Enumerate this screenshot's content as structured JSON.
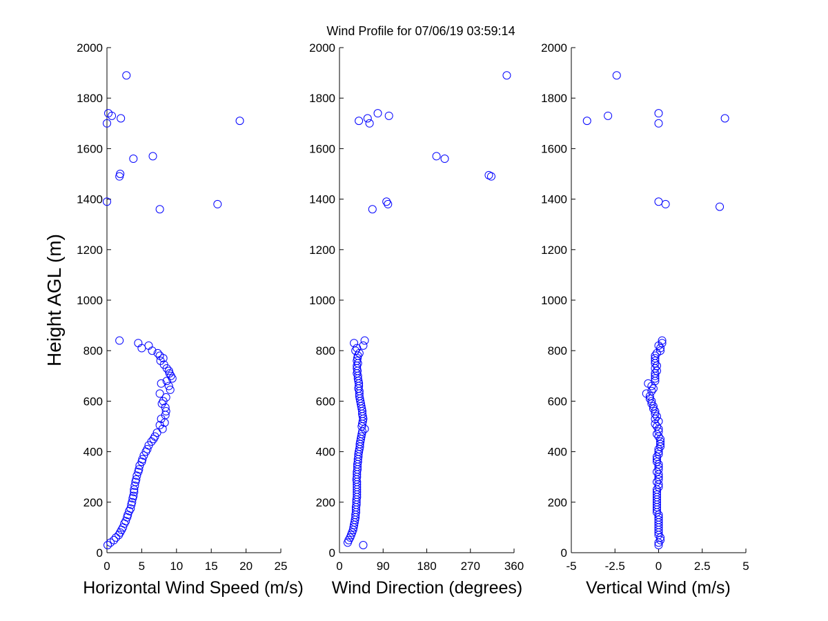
{
  "title": "Wind Profile for  07/06/19 03:59:14",
  "colors": {
    "marker": "#0000ff",
    "axis": "#000000"
  },
  "chart_data": [
    {
      "type": "scatter",
      "id": "speed",
      "xlabel": "Horizontal Wind Speed (m/s)",
      "ylabel": "Height AGL (m)",
      "xlim": [
        0,
        25
      ],
      "ylim": [
        0,
        2000
      ],
      "xticks": [
        0,
        5,
        10,
        15,
        20,
        25
      ],
      "xtick_labels": [
        "0",
        "5",
        "10",
        "15",
        "20",
        "25"
      ],
      "yticks": [
        0,
        200,
        400,
        600,
        800,
        1000,
        1200,
        1400,
        1600,
        1800,
        2000
      ],
      "points": [
        [
          2.8,
          1890
        ],
        [
          0.2,
          1740
        ],
        [
          0.7,
          1730
        ],
        [
          2.0,
          1720
        ],
        [
          19.1,
          1710
        ],
        [
          0.0,
          1700
        ],
        [
          6.6,
          1570
        ],
        [
          3.8,
          1560
        ],
        [
          1.9,
          1500
        ],
        [
          1.8,
          1490
        ],
        [
          0.0,
          1390
        ],
        [
          15.9,
          1380
        ],
        [
          7.6,
          1360
        ],
        [
          1.8,
          840
        ],
        [
          4.5,
          830
        ],
        [
          6.0,
          820
        ],
        [
          5.0,
          810
        ],
        [
          6.5,
          800
        ],
        [
          7.3,
          790
        ],
        [
          7.6,
          780
        ],
        [
          8.1,
          770
        ],
        [
          7.7,
          760
        ],
        [
          8.2,
          745
        ],
        [
          8.6,
          730
        ],
        [
          8.9,
          720
        ],
        [
          9.0,
          710
        ],
        [
          9.2,
          700
        ],
        [
          9.4,
          690
        ],
        [
          8.6,
          680
        ],
        [
          7.8,
          670
        ],
        [
          8.9,
          660
        ],
        [
          9.1,
          645
        ],
        [
          7.6,
          630
        ],
        [
          8.5,
          615
        ],
        [
          8.1,
          600
        ],
        [
          7.9,
          590
        ],
        [
          8.4,
          575
        ],
        [
          8.5,
          560
        ],
        [
          8.4,
          545
        ],
        [
          7.8,
          530
        ],
        [
          8.3,
          515
        ],
        [
          7.6,
          505
        ],
        [
          8.0,
          490
        ],
        [
          7.2,
          475
        ],
        [
          6.9,
          460
        ],
        [
          6.7,
          450
        ],
        [
          6.4,
          440
        ],
        [
          6.0,
          425
        ],
        [
          5.8,
          410
        ],
        [
          5.6,
          400
        ],
        [
          5.3,
          385
        ],
        [
          5.1,
          370
        ],
        [
          5.0,
          360
        ],
        [
          4.7,
          345
        ],
        [
          4.6,
          330
        ],
        [
          4.5,
          320
        ],
        [
          4.3,
          305
        ],
        [
          4.2,
          290
        ],
        [
          4.1,
          280
        ],
        [
          4.0,
          265
        ],
        [
          3.9,
          250
        ],
        [
          3.9,
          240
        ],
        [
          3.8,
          225
        ],
        [
          3.7,
          215
        ],
        [
          3.6,
          200
        ],
        [
          3.5,
          190
        ],
        [
          3.4,
          175
        ],
        [
          3.2,
          165
        ],
        [
          3.0,
          150
        ],
        [
          2.9,
          140
        ],
        [
          2.7,
          125
        ],
        [
          2.5,
          115
        ],
        [
          2.3,
          100
        ],
        [
          2.1,
          90
        ],
        [
          1.9,
          80
        ],
        [
          1.7,
          70
        ],
        [
          1.3,
          60
        ],
        [
          1.0,
          50
        ],
        [
          0.5,
          40
        ],
        [
          0.1,
          30
        ]
      ]
    },
    {
      "type": "scatter",
      "id": "direction",
      "xlabel": "Wind Direction (degrees)",
      "ylabel": "",
      "xlim": [
        0,
        360
      ],
      "ylim": [
        0,
        2000
      ],
      "xticks": [
        0,
        90,
        180,
        270,
        360
      ],
      "xtick_labels": [
        "0",
        "90",
        "180",
        "270",
        "360"
      ],
      "yticks": [
        0,
        200,
        400,
        600,
        800,
        1000,
        1200,
        1400,
        1600,
        1800,
        2000
      ],
      "points": [
        [
          345,
          1890
        ],
        [
          79,
          1740
        ],
        [
          102,
          1730
        ],
        [
          58,
          1720
        ],
        [
          40,
          1710
        ],
        [
          62,
          1700
        ],
        [
          200,
          1570
        ],
        [
          217,
          1560
        ],
        [
          308,
          1495
        ],
        [
          313,
          1490
        ],
        [
          97,
          1390
        ],
        [
          100,
          1380
        ],
        [
          68,
          1360
        ],
        [
          52,
          840
        ],
        [
          30,
          830
        ],
        [
          49,
          820
        ],
        [
          36,
          810
        ],
        [
          33,
          800
        ],
        [
          41,
          790
        ],
        [
          38,
          780
        ],
        [
          37,
          770
        ],
        [
          36,
          760
        ],
        [
          38,
          750
        ],
        [
          36,
          740
        ],
        [
          36,
          730
        ],
        [
          37,
          720
        ],
        [
          36,
          710
        ],
        [
          38,
          700
        ],
        [
          38,
          690
        ],
        [
          39,
          680
        ],
        [
          40,
          670
        ],
        [
          40,
          660
        ],
        [
          39,
          650
        ],
        [
          41,
          640
        ],
        [
          41,
          630
        ],
        [
          41,
          620
        ],
        [
          42,
          610
        ],
        [
          43,
          600
        ],
        [
          44,
          590
        ],
        [
          45,
          580
        ],
        [
          46,
          570
        ],
        [
          47,
          560
        ],
        [
          47,
          550
        ],
        [
          48,
          540
        ],
        [
          49,
          530
        ],
        [
          48,
          520
        ],
        [
          47,
          510
        ],
        [
          46,
          500
        ],
        [
          52,
          490
        ],
        [
          47,
          480
        ],
        [
          46,
          470
        ],
        [
          45,
          460
        ],
        [
          44,
          450
        ],
        [
          43,
          440
        ],
        [
          42,
          430
        ],
        [
          42,
          420
        ],
        [
          41,
          410
        ],
        [
          40,
          400
        ],
        [
          39,
          390
        ],
        [
          39,
          380
        ],
        [
          38,
          370
        ],
        [
          38,
          360
        ],
        [
          37,
          350
        ],
        [
          37,
          340
        ],
        [
          37,
          330
        ],
        [
          36,
          320
        ],
        [
          36,
          310
        ],
        [
          36,
          300
        ],
        [
          35,
          290
        ],
        [
          36,
          280
        ],
        [
          36,
          270
        ],
        [
          36,
          260
        ],
        [
          36,
          250
        ],
        [
          36,
          240
        ],
        [
          36,
          230
        ],
        [
          36,
          220
        ],
        [
          35,
          210
        ],
        [
          35,
          200
        ],
        [
          35,
          190
        ],
        [
          34,
          180
        ],
        [
          34,
          170
        ],
        [
          34,
          160
        ],
        [
          33,
          150
        ],
        [
          33,
          140
        ],
        [
          32,
          130
        ],
        [
          31,
          120
        ],
        [
          30,
          110
        ],
        [
          29,
          100
        ],
        [
          28,
          90
        ],
        [
          26,
          80
        ],
        [
          24,
          70
        ],
        [
          22,
          60
        ],
        [
          19,
          50
        ],
        [
          17,
          40
        ],
        [
          49,
          30
        ]
      ]
    },
    {
      "type": "scatter",
      "id": "vertical",
      "xlabel": "Vertical Wind (m/s)",
      "ylabel": "",
      "xlim": [
        -5,
        5
      ],
      "ylim": [
        0,
        2000
      ],
      "xticks": [
        -5,
        -2.5,
        0,
        2.5,
        5
      ],
      "xtick_labels": [
        "-5",
        "-2.5",
        "0",
        "2.5",
        "5"
      ],
      "yticks": [
        0,
        200,
        400,
        600,
        800,
        1000,
        1200,
        1400,
        1600,
        1800,
        2000
      ],
      "points": [
        [
          -2.4,
          1890
        ],
        [
          0.0,
          1740
        ],
        [
          -2.9,
          1730
        ],
        [
          3.8,
          1720
        ],
        [
          -4.1,
          1710
        ],
        [
          0.0,
          1700
        ],
        [
          0.0,
          1390
        ],
        [
          0.4,
          1380
        ],
        [
          3.5,
          1370
        ],
        [
          0.2,
          840
        ],
        [
          0.2,
          830
        ],
        [
          0.0,
          820
        ],
        [
          0.1,
          810
        ],
        [
          0.1,
          800
        ],
        [
          -0.1,
          790
        ],
        [
          -0.2,
          780
        ],
        [
          -0.2,
          770
        ],
        [
          -0.2,
          760
        ],
        [
          -0.2,
          750
        ],
        [
          -0.1,
          740
        ],
        [
          -0.2,
          730
        ],
        [
          -0.1,
          720
        ],
        [
          -0.2,
          710
        ],
        [
          -0.2,
          700
        ],
        [
          -0.2,
          690
        ],
        [
          -0.2,
          680
        ],
        [
          -0.6,
          670
        ],
        [
          -0.4,
          660
        ],
        [
          -0.3,
          650
        ],
        [
          -0.4,
          640
        ],
        [
          -0.7,
          630
        ],
        [
          -0.5,
          620
        ],
        [
          -0.5,
          610
        ],
        [
          -0.4,
          600
        ],
        [
          -0.4,
          590
        ],
        [
          -0.3,
          580
        ],
        [
          -0.3,
          570
        ],
        [
          -0.2,
          560
        ],
        [
          -0.2,
          550
        ],
        [
          -0.1,
          540
        ],
        [
          -0.2,
          530
        ],
        [
          0.0,
          520
        ],
        [
          -0.2,
          510
        ],
        [
          -0.1,
          500
        ],
        [
          0.0,
          490
        ],
        [
          0.0,
          480
        ],
        [
          -0.1,
          470
        ],
        [
          0.0,
          460
        ],
        [
          0.1,
          450
        ],
        [
          0.1,
          440
        ],
        [
          0.1,
          430
        ],
        [
          0.1,
          420
        ],
        [
          0.0,
          410
        ],
        [
          0.0,
          400
        ],
        [
          0.0,
          390
        ],
        [
          -0.1,
          380
        ],
        [
          -0.1,
          370
        ],
        [
          -0.1,
          360
        ],
        [
          0.0,
          350
        ],
        [
          0.0,
          340
        ],
        [
          0.0,
          330
        ],
        [
          -0.1,
          320
        ],
        [
          0.0,
          310
        ],
        [
          0.0,
          300
        ],
        [
          0.0,
          290
        ],
        [
          -0.1,
          280
        ],
        [
          0.0,
          270
        ],
        [
          0.0,
          260
        ],
        [
          -0.1,
          250
        ],
        [
          -0.1,
          240
        ],
        [
          -0.1,
          230
        ],
        [
          -0.1,
          220
        ],
        [
          -0.1,
          210
        ],
        [
          -0.1,
          200
        ],
        [
          -0.1,
          190
        ],
        [
          -0.1,
          180
        ],
        [
          -0.1,
          170
        ],
        [
          -0.1,
          160
        ],
        [
          0.0,
          150
        ],
        [
          0.0,
          140
        ],
        [
          0.0,
          130
        ],
        [
          0.0,
          120
        ],
        [
          0.0,
          110
        ],
        [
          0.0,
          100
        ],
        [
          0.0,
          90
        ],
        [
          0.0,
          80
        ],
        [
          0.0,
          70
        ],
        [
          0.1,
          60
        ],
        [
          0.1,
          50
        ],
        [
          0.0,
          40
        ],
        [
          0.0,
          30
        ]
      ]
    }
  ]
}
